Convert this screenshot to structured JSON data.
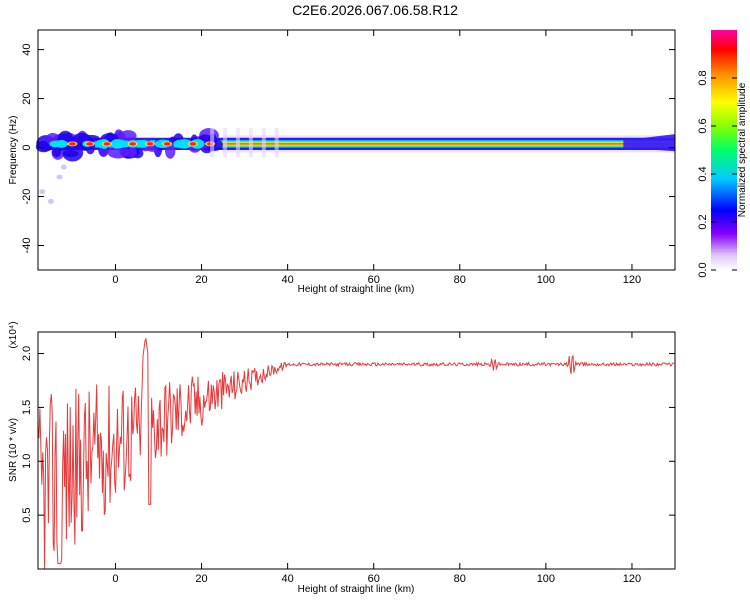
{
  "title": "C2E6.2026.067.06.58.R12",
  "chart_data": [
    {
      "type": "heatmap",
      "xlabel": "Height of straight line (km)",
      "ylabel": "Frequency (Hz)",
      "xlim": [
        -18,
        130
      ],
      "ylim": [
        -50,
        48
      ],
      "xticks": [
        0,
        20,
        40,
        60,
        80,
        100,
        120
      ],
      "yticks": [
        -40,
        -20,
        0,
        20,
        40
      ],
      "colorbar": {
        "label": "Normalized spectral amplitude",
        "range": [
          0,
          1
        ],
        "ticks": [
          "0.0",
          "0.2",
          "0.4",
          "0.6",
          "0.8"
        ],
        "colors": [
          "#ffffff",
          "#e0c8f8",
          "#8800ff",
          "#0000ff",
          "#00ccff",
          "#00ff66",
          "#88ff00",
          "#ffff00",
          "#ff8800",
          "#ff0000",
          "#ff00aa"
        ]
      },
      "band_center_hz": 1.5,
      "band_halfwidth_hz": 2,
      "peak_blobs_km": [
        -10,
        -6,
        -2,
        4,
        8,
        12,
        18,
        22
      ]
    },
    {
      "type": "line",
      "xlabel": "Height of straight line (km)",
      "ylabel": "SNR (10 * v/v)",
      "multiplier": "(x10⁴)",
      "xlim": [
        -18,
        130
      ],
      "ylim": [
        0,
        2.2
      ],
      "xticks": [
        0,
        20,
        40,
        60,
        80,
        100,
        120
      ],
      "yticks": [
        "0.5",
        "1.0",
        "1.5",
        "2.0"
      ],
      "color": "#e8393a",
      "plateau": 1.9,
      "peak": {
        "x": 7,
        "y": 2.16
      },
      "dips": [
        {
          "x": -13,
          "y": 0.05
        },
        {
          "x": 8,
          "y": 0.6
        }
      ],
      "features": [
        {
          "x": 88,
          "y": 1.98
        },
        {
          "x": 106,
          "y": 2.03
        }
      ]
    }
  ]
}
